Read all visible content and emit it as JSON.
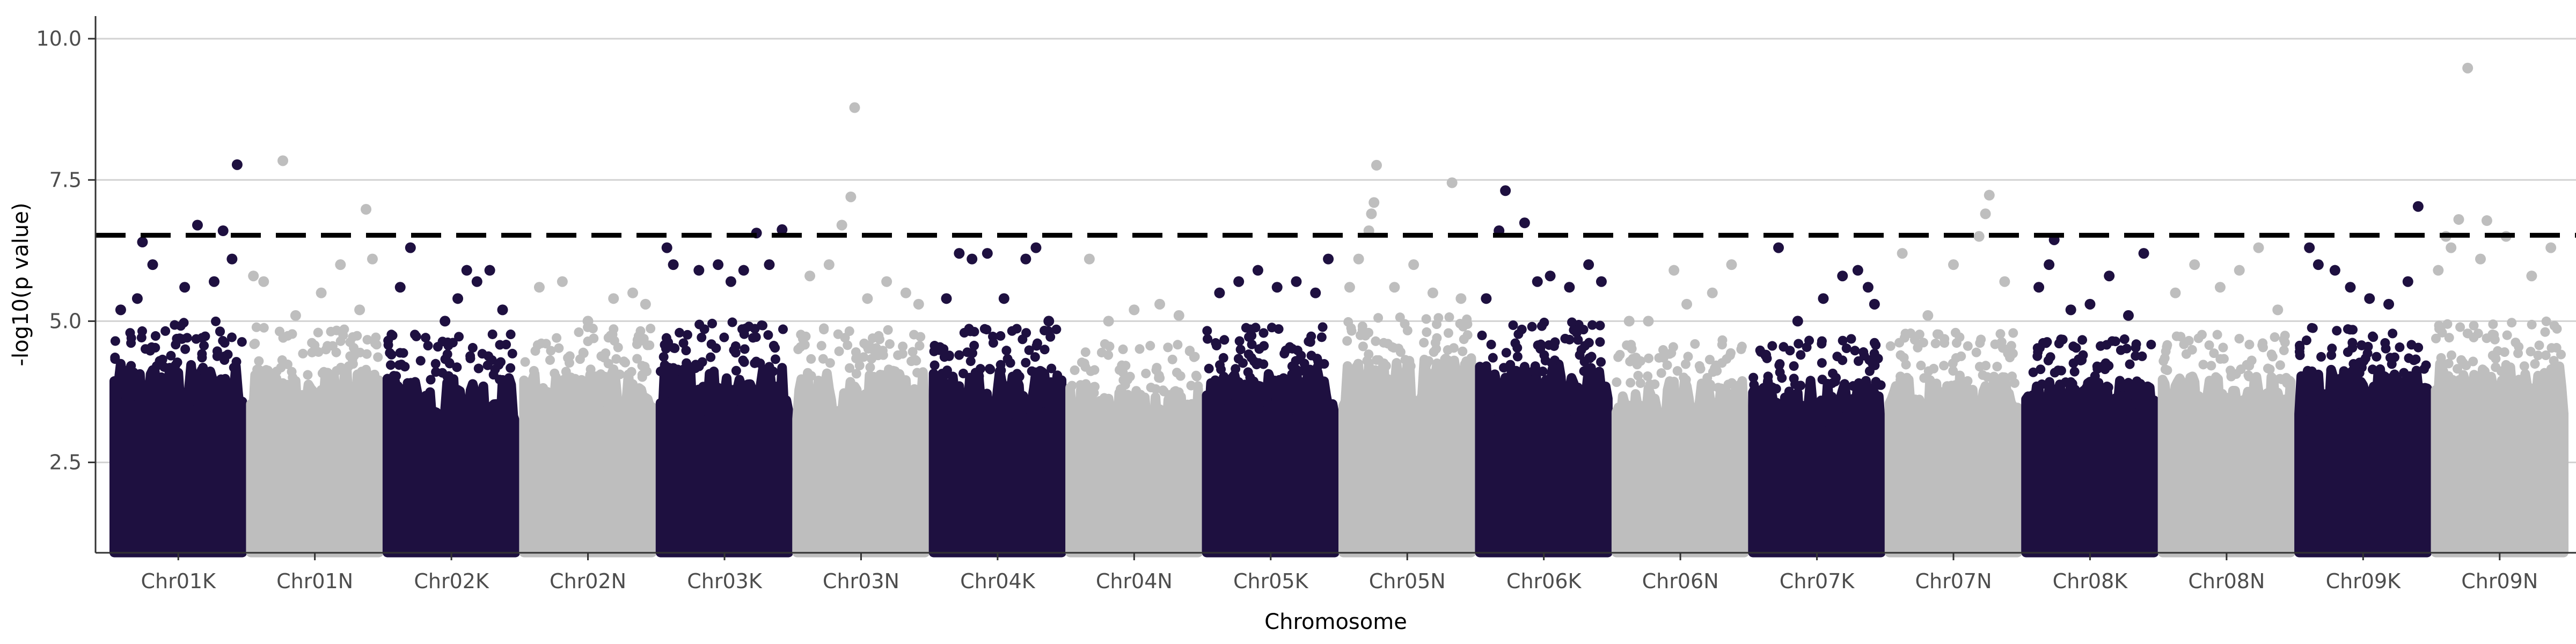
{
  "chart_data": {
    "type": "scatter",
    "title": "",
    "xlabel": "Chromosome",
    "ylabel": "-log10(p value)",
    "ylim": [
      0.9,
      10.4
    ],
    "y_ticks": [
      2.5,
      5.0,
      7.5,
      10.0
    ],
    "y_tick_labels": [
      "2.5",
      "5.0",
      "7.5",
      "10.0"
    ],
    "grid": "horizontal major lines at y tick positions",
    "legend": "none",
    "threshold": {
      "value": 6.52,
      "style": "dashed",
      "color": "#000000"
    },
    "colors": {
      "K": "#1e1040",
      "N": "#bebebe"
    },
    "chromosomes": [
      {
        "label": "Chr01K",
        "color": "#1e1040",
        "dense_max": 4.4,
        "tail": [
          [
            0.05,
            5.2
          ],
          [
            0.18,
            5.4
          ],
          [
            0.3,
            6.0
          ],
          [
            0.22,
            6.4
          ],
          [
            0.55,
            5.6
          ],
          [
            0.65,
            6.7
          ],
          [
            0.78,
            5.7
          ],
          [
            0.85,
            6.6
          ],
          [
            0.92,
            6.1
          ],
          [
            0.96,
            7.77
          ]
        ]
      },
      {
        "label": "Chr01N",
        "color": "#bebebe",
        "dense_max": 4.3,
        "tail": [
          [
            0.02,
            5.8
          ],
          [
            0.1,
            5.7
          ],
          [
            0.25,
            7.84
          ],
          [
            0.35,
            5.1
          ],
          [
            0.55,
            5.5
          ],
          [
            0.7,
            6.0
          ],
          [
            0.85,
            5.2
          ],
          [
            0.9,
            6.98
          ],
          [
            0.95,
            6.1
          ]
        ]
      },
      {
        "label": "Chr02K",
        "color": "#1e1040",
        "dense_max": 4.2,
        "tail": [
          [
            0.1,
            5.6
          ],
          [
            0.18,
            6.3
          ],
          [
            0.45,
            5.0
          ],
          [
            0.55,
            5.4
          ],
          [
            0.62,
            5.9
          ],
          [
            0.7,
            5.7
          ],
          [
            0.8,
            5.9
          ],
          [
            0.9,
            5.2
          ]
        ]
      },
      {
        "label": "Chr02N",
        "color": "#bebebe",
        "dense_max": 4.3,
        "tail": [
          [
            0.12,
            5.6
          ],
          [
            0.3,
            5.7
          ],
          [
            0.5,
            5.0
          ],
          [
            0.7,
            5.4
          ],
          [
            0.85,
            5.5
          ],
          [
            0.95,
            5.3
          ]
        ]
      },
      {
        "label": "Chr03K",
        "color": "#1e1040",
        "dense_max": 4.4,
        "tail": [
          [
            0.05,
            6.3
          ],
          [
            0.1,
            6.0
          ],
          [
            0.3,
            5.9
          ],
          [
            0.45,
            6.0
          ],
          [
            0.55,
            5.7
          ],
          [
            0.65,
            5.9
          ],
          [
            0.75,
            6.56
          ],
          [
            0.85,
            6.0
          ],
          [
            0.95,
            6.62
          ]
        ]
      },
      {
        "label": "Chr03N",
        "color": "#bebebe",
        "dense_max": 4.3,
        "tail": [
          [
            0.1,
            5.8
          ],
          [
            0.25,
            6.0
          ],
          [
            0.35,
            6.7
          ],
          [
            0.42,
            7.2
          ],
          [
            0.45,
            8.78
          ],
          [
            0.55,
            5.4
          ],
          [
            0.7,
            5.7
          ],
          [
            0.85,
            5.5
          ],
          [
            0.95,
            5.3
          ]
        ]
      },
      {
        "label": "Chr04K",
        "color": "#1e1040",
        "dense_max": 4.3,
        "tail": [
          [
            0.1,
            5.4
          ],
          [
            0.2,
            6.2
          ],
          [
            0.3,
            6.1
          ],
          [
            0.42,
            6.2
          ],
          [
            0.55,
            5.4
          ],
          [
            0.72,
            6.1
          ],
          [
            0.8,
            6.3
          ],
          [
            0.9,
            5.0
          ]
        ]
      },
      {
        "label": "Chr04N",
        "color": "#bebebe",
        "dense_max": 4.0,
        "tail": [
          [
            0.15,
            6.1
          ],
          [
            0.3,
            5.0
          ],
          [
            0.5,
            5.2
          ],
          [
            0.7,
            5.3
          ],
          [
            0.85,
            5.1
          ]
        ]
      },
      {
        "label": "Chr05K",
        "color": "#1e1040",
        "dense_max": 4.3,
        "tail": [
          [
            0.1,
            5.5
          ],
          [
            0.25,
            5.7
          ],
          [
            0.4,
            5.9
          ],
          [
            0.55,
            5.6
          ],
          [
            0.7,
            5.7
          ],
          [
            0.85,
            5.5
          ],
          [
            0.95,
            6.1
          ]
        ]
      },
      {
        "label": "Chr05N",
        "color": "#bebebe",
        "dense_max": 4.5,
        "tail": [
          [
            0.05,
            5.6
          ],
          [
            0.12,
            6.1
          ],
          [
            0.2,
            6.6
          ],
          [
            0.22,
            6.9
          ],
          [
            0.24,
            7.1
          ],
          [
            0.26,
            7.76
          ],
          [
            0.4,
            5.6
          ],
          [
            0.55,
            6.0
          ],
          [
            0.7,
            5.5
          ],
          [
            0.85,
            7.45
          ],
          [
            0.92,
            5.4
          ]
        ]
      },
      {
        "label": "Chr06K",
        "color": "#1e1040",
        "dense_max": 4.4,
        "tail": [
          [
            0.05,
            5.4
          ],
          [
            0.15,
            6.6
          ],
          [
            0.2,
            7.31
          ],
          [
            0.35,
            6.74
          ],
          [
            0.45,
            5.7
          ],
          [
            0.55,
            5.8
          ],
          [
            0.7,
            5.6
          ],
          [
            0.85,
            6.0
          ],
          [
            0.95,
            5.7
          ]
        ]
      },
      {
        "label": "Chr06N",
        "color": "#bebebe",
        "dense_max": 4.1,
        "tail": [
          [
            0.1,
            5.0
          ],
          [
            0.25,
            5.0
          ],
          [
            0.45,
            5.9
          ],
          [
            0.55,
            5.3
          ],
          [
            0.75,
            5.5
          ],
          [
            0.9,
            6.0
          ]
        ]
      },
      {
        "label": "Chr07K",
        "color": "#1e1040",
        "dense_max": 4.1,
        "tail": [
          [
            0.1,
            4.4
          ],
          [
            0.2,
            6.3
          ],
          [
            0.35,
            5.0
          ],
          [
            0.55,
            5.4
          ],
          [
            0.7,
            5.8
          ],
          [
            0.82,
            5.9
          ],
          [
            0.9,
            5.6
          ],
          [
            0.95,
            5.3
          ]
        ]
      },
      {
        "label": "Chr07N",
        "color": "#bebebe",
        "dense_max": 4.2,
        "tail": [
          [
            0.1,
            6.2
          ],
          [
            0.3,
            5.1
          ],
          [
            0.5,
            6.0
          ],
          [
            0.7,
            6.5
          ],
          [
            0.75,
            6.9
          ],
          [
            0.78,
            7.23
          ],
          [
            0.9,
            5.7
          ]
        ]
      },
      {
        "label": "Chr08K",
        "color": "#1e1040",
        "dense_max": 4.1,
        "tail": [
          [
            0.1,
            5.6
          ],
          [
            0.18,
            6.0
          ],
          [
            0.22,
            6.44
          ],
          [
            0.35,
            5.2
          ],
          [
            0.5,
            5.3
          ],
          [
            0.65,
            5.8
          ],
          [
            0.8,
            5.1
          ],
          [
            0.92,
            6.2
          ]
        ]
      },
      {
        "label": "Chr08N",
        "color": "#bebebe",
        "dense_max": 4.2,
        "tail": [
          [
            0.1,
            5.5
          ],
          [
            0.25,
            6.0
          ],
          [
            0.45,
            5.6
          ],
          [
            0.6,
            5.9
          ],
          [
            0.75,
            6.3
          ],
          [
            0.9,
            5.2
          ]
        ]
      },
      {
        "label": "Chr09K",
        "color": "#1e1040",
        "dense_max": 4.3,
        "tail": [
          [
            0.08,
            6.3
          ],
          [
            0.15,
            6.0
          ],
          [
            0.28,
            5.9
          ],
          [
            0.4,
            5.6
          ],
          [
            0.55,
            5.4
          ],
          [
            0.7,
            5.3
          ],
          [
            0.85,
            5.7
          ],
          [
            0.93,
            7.03
          ]
        ]
      },
      {
        "label": "Chr09N",
        "color": "#bebebe",
        "dense_max": 4.4,
        "tail": [
          [
            0.02,
            5.9
          ],
          [
            0.08,
            6.5
          ],
          [
            0.12,
            6.3
          ],
          [
            0.18,
            6.8
          ],
          [
            0.25,
            9.48
          ],
          [
            0.35,
            6.1
          ],
          [
            0.4,
            6.78
          ],
          [
            0.55,
            6.5
          ],
          [
            0.75,
            5.8
          ],
          [
            0.9,
            6.3
          ]
        ]
      }
    ]
  }
}
